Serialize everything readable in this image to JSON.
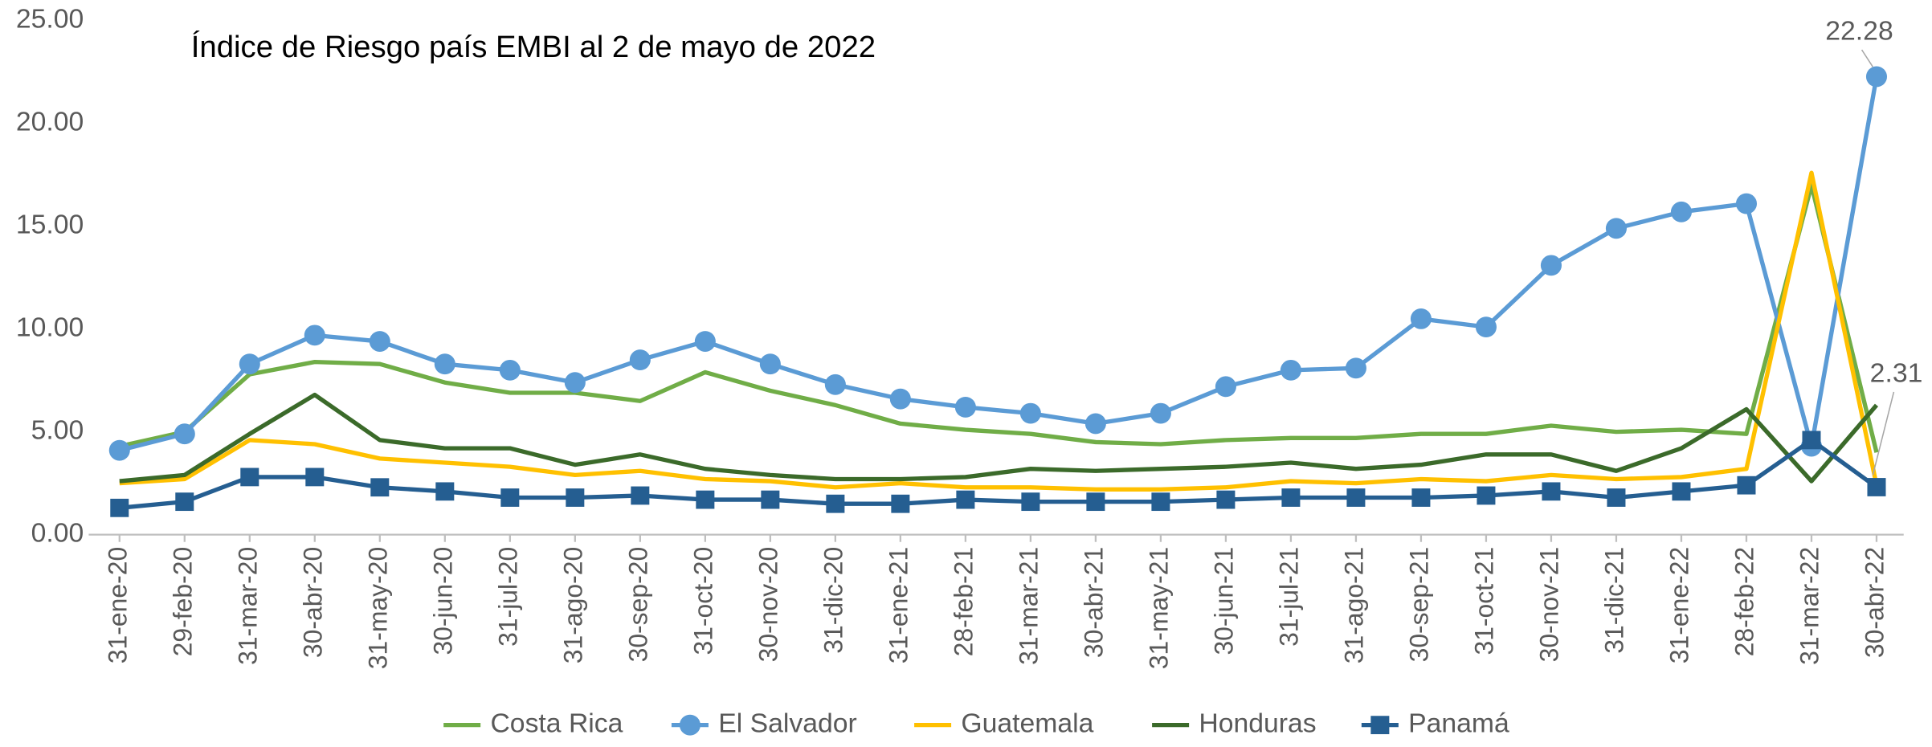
{
  "chart_data": {
    "type": "line",
    "title": "Índice de Riesgo país EMBI al 2 de mayo de 2022",
    "categories": [
      "31-ene-20",
      "29-feb-20",
      "31-mar-20",
      "30-abr-20",
      "31-may-20",
      "30-jun-20",
      "31-jul-20",
      "31-ago-20",
      "30-sep-20",
      "31-oct-20",
      "30-nov-20",
      "31-dic-20",
      "31-ene-21",
      "28-feb-21",
      "31-mar-21",
      "30-abr-21",
      "31-may-21",
      "30-jun-21",
      "31-jul-21",
      "31-ago-21",
      "30-sep-21",
      "31-oct-21",
      "30-nov-21",
      "31-dic-21",
      "31-ene-22",
      "28-feb-22",
      "31-mar-22",
      "30-abr-22"
    ],
    "series": [
      {
        "name": "Costa Rica",
        "color": "#70ad47",
        "marker": "none",
        "values": [
          4.3,
          5.0,
          7.8,
          8.4,
          8.3,
          7.4,
          6.9,
          6.9,
          6.5,
          7.9,
          7.0,
          6.3,
          5.4,
          5.1,
          4.9,
          4.5,
          4.4,
          4.6,
          4.7,
          4.7,
          4.9,
          4.9,
          5.3,
          5.0,
          5.1,
          4.9,
          17.0,
          4.0
        ]
      },
      {
        "name": "El Salvador",
        "color": "#5b9bd5",
        "marker": "circle",
        "values": [
          4.1,
          4.9,
          8.3,
          9.7,
          9.4,
          8.3,
          8.0,
          7.4,
          8.5,
          9.4,
          8.3,
          7.3,
          6.6,
          6.2,
          5.9,
          5.4,
          5.9,
          7.2,
          8.0,
          8.1,
          10.5,
          10.1,
          13.1,
          14.9,
          15.7,
          16.1,
          4.3,
          22.28
        ],
        "value_labels": [
          null,
          null,
          null,
          null,
          null,
          null,
          null,
          null,
          null,
          null,
          null,
          null,
          null,
          null,
          null,
          null,
          null,
          null,
          null,
          null,
          null,
          null,
          null,
          null,
          null,
          null,
          null,
          "22.28"
        ]
      },
      {
        "name": "Guatemala",
        "color": "#ffc000",
        "marker": "none",
        "values": [
          2.5,
          2.7,
          4.6,
          4.4,
          3.7,
          3.5,
          3.3,
          2.9,
          3.1,
          2.7,
          2.6,
          2.3,
          2.5,
          2.3,
          2.3,
          2.2,
          2.2,
          2.3,
          2.6,
          2.5,
          2.7,
          2.6,
          2.9,
          2.7,
          2.8,
          3.2,
          17.6,
          2.4
        ]
      },
      {
        "name": "Honduras",
        "color": "#3b6a2a",
        "marker": "none",
        "values": [
          2.6,
          2.9,
          4.9,
          6.8,
          4.6,
          4.2,
          4.2,
          3.4,
          3.9,
          3.2,
          2.9,
          2.7,
          2.7,
          2.8,
          3.2,
          3.1,
          3.2,
          3.3,
          3.5,
          3.2,
          3.4,
          3.9,
          3.9,
          3.1,
          4.2,
          6.1,
          2.6,
          6.3
        ]
      },
      {
        "name": "Panamá",
        "color": "#255e91",
        "marker": "square",
        "values": [
          1.3,
          1.6,
          2.8,
          2.8,
          2.3,
          2.1,
          1.8,
          1.8,
          1.9,
          1.7,
          1.7,
          1.5,
          1.5,
          1.7,
          1.6,
          1.6,
          1.6,
          1.7,
          1.8,
          1.8,
          1.8,
          1.9,
          2.1,
          1.8,
          2.1,
          2.4,
          4.6,
          2.31
        ],
        "value_labels": [
          null,
          null,
          null,
          null,
          null,
          null,
          null,
          null,
          null,
          null,
          null,
          null,
          null,
          null,
          null,
          null,
          null,
          null,
          null,
          null,
          null,
          null,
          null,
          null,
          null,
          null,
          null,
          "2.31"
        ]
      }
    ],
    "ylim": [
      0,
      25
    ],
    "yticks": [
      {
        "value": 0,
        "label": "0.00"
      },
      {
        "value": 5,
        "label": "5.00"
      },
      {
        "value": 10,
        "label": "10.00"
      },
      {
        "value": 15,
        "label": "15.00"
      },
      {
        "value": 20,
        "label": "20.00"
      },
      {
        "value": 25,
        "label": "25.00"
      }
    ],
    "grid": false,
    "legend": "bottom"
  }
}
